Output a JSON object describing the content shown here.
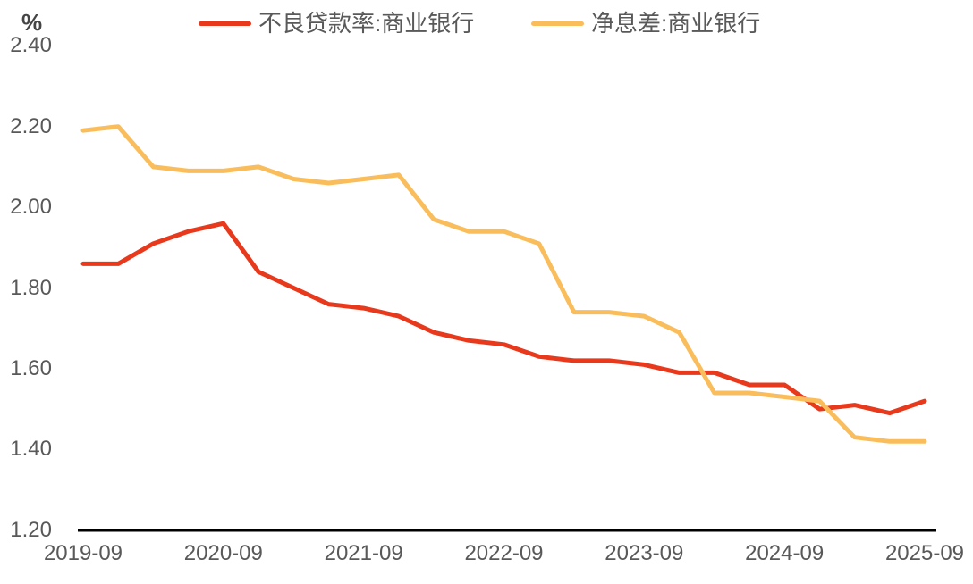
{
  "figure": {
    "unit_label": "%",
    "background_color": "#ffffff",
    "axis_line_color": "#000000",
    "tick_label_color": "#595959",
    "legend_text_color": "#595959"
  },
  "chart_data": {
    "type": "line",
    "title": "",
    "xlabel": "",
    "ylabel": "%",
    "grid": false,
    "legend_position": "top",
    "ylim": [
      1.2,
      2.4
    ],
    "yticks": [
      {
        "value": 2.4,
        "label": "2.40"
      },
      {
        "value": 2.2,
        "label": "2.20"
      },
      {
        "value": 2.0,
        "label": "2.00"
      },
      {
        "value": 1.8,
        "label": "1.80"
      },
      {
        "value": 1.6,
        "label": "1.60"
      },
      {
        "value": 1.4,
        "label": "1.40"
      },
      {
        "value": 1.2,
        "label": "1.20"
      }
    ],
    "x": [
      "2019-09",
      "2019-12",
      "2020-03",
      "2020-06",
      "2020-09",
      "2020-12",
      "2021-03",
      "2021-06",
      "2021-09",
      "2021-12",
      "2022-03",
      "2022-06",
      "2022-09",
      "2022-12",
      "2023-03",
      "2023-06",
      "2023-09",
      "2023-12",
      "2024-03",
      "2024-06",
      "2024-09",
      "2024-12",
      "2025-03",
      "2025-06",
      "2025-09"
    ],
    "x_tick_every": 4,
    "x_tick_labels": [
      "2019-09",
      "2020-09",
      "2021-09",
      "2022-09",
      "2023-09",
      "2024-09",
      "2025-09"
    ],
    "series": [
      {
        "name": "不良贷款率:商业银行",
        "color": "#E8391D",
        "values": [
          1.86,
          1.86,
          1.91,
          1.94,
          1.96,
          1.84,
          1.8,
          1.76,
          1.75,
          1.73,
          1.69,
          1.67,
          1.66,
          1.63,
          1.62,
          1.62,
          1.61,
          1.59,
          1.59,
          1.56,
          1.56,
          1.5,
          1.51,
          1.49,
          1.52
        ]
      },
      {
        "name": "净息差:商业银行",
        "color": "#FABD5C",
        "values": [
          2.19,
          2.2,
          2.1,
          2.09,
          2.09,
          2.1,
          2.07,
          2.06,
          2.07,
          2.08,
          1.97,
          1.94,
          1.94,
          1.91,
          1.74,
          1.74,
          1.73,
          1.69,
          1.54,
          1.54,
          1.53,
          1.52,
          1.43,
          1.42,
          1.42
        ]
      }
    ]
  }
}
